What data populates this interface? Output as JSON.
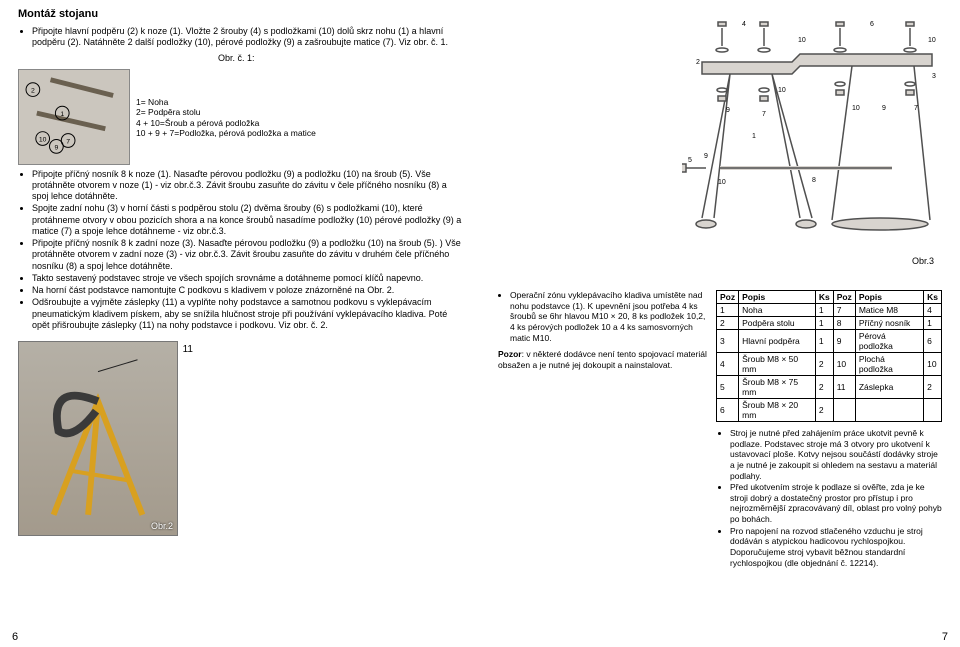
{
  "title": "Montáž stojanu",
  "intro_bullets": [
    "Připojte hlavní podpěru (2) k noze (1). Vložte 2 šrouby (4) s podložkami (10) dolů skrz nohu (1) a hlavní podpěru (2). Natáhněte 2 další podložky (10), pérové podložky (9) a zašroubujte matice (7). Viz obr. č. 1."
  ],
  "obr1_label": "Obr. č. 1:",
  "legend": {
    "l1": "1= Noha",
    "l2": "2= Podpěra stolu",
    "l3": "4 + 10=Šroub a pérová podložka",
    "l4": "10 + 9 + 7=Podložka, pérová podložka  a matice"
  },
  "main_bullets": [
    "Připojte příčný nosník 8 k noze (1). Nasaďte pérovou podložku (9) a podložku (10) na šroub (5). Vše protáhněte otvorem v noze (1) - viz obr.č.3. Závit šroubu zasuňte do závitu v čele příčného nosníku (8) a spoj lehce dotáhněte.",
    "Spojte zadní nohu (3) v horní části s podpěrou stolu (2) dvěma šrouby (6) s podložkami (10), které protáhneme otvory v obou pozicích shora a na konce šroubů nasadíme podložky (10) pérové podložky (9) a matice (7) a spoje lehce dotáhneme - viz obr.č.3.",
    "Připojte příčný nosník 8 k zadní noze (3). Nasaďte pérovou podložku (9) a podložku (10) na šroub (5). ) Vše protáhněte otvorem v zadní noze (3) - viz obr.č.3. Závit šroubu zasuňte do závitu v druhém čele příčného nosníku (8) a spoj lehce dotáhněte.",
    "Takto sestavený podstavec stroje ve všech spojích srovnáme a dotáhneme pomocí klíčů napevno.",
    "Na horní část podstavce namontujte C podkovu s kladivem v poloze znázorněné na Obr. 2.",
    "Odšroubujte a vyjměte záslepky (11) a vyplňte nohy podstavce a samotnou podkovu s vyklepávacím pneumatickým kladivem pískem, aby se snížila hlučnost stroje při používání vyklepávacího kladiva. Poté opět přišroubujte záslepky (11) na nohy podstavce i podkovu. Viz obr. č. 2."
  ],
  "photo_num": "11",
  "photo_label": "Obr.2",
  "right_text": {
    "p1": "Operační zónu vyklepávacího kladiva umístěte nad nohu podstavce (1). K upevnění jsou potřeba 4 ks šroubů se 6hr hlavou M10 × 20, 8 ks podložek 10,2, 4 ks pérových podložek 10 a 4 ks samosvorných matic M10.",
    "p2_bold": "Pozor",
    "p2_rest": ": v některé dodávce není tento spojovací materiál obsažen a je nutné jej dokoupit a nainstalovat."
  },
  "table": {
    "headers": [
      "Poz",
      "Popis",
      "Ks",
      "Poz",
      "Popis",
      "Ks"
    ],
    "rows": [
      [
        "1",
        "Noha",
        "1",
        "7",
        "Matice M8",
        "4"
      ],
      [
        "2",
        "Podpěra stolu",
        "1",
        "8",
        "Příčný nosník",
        "1"
      ],
      [
        "3",
        "Hlavní podpěra",
        "1",
        "9",
        "Pérová podložka",
        "6"
      ],
      [
        "4",
        "Šroub M8 × 50 mm",
        "2",
        "10",
        "Plochá podložka",
        "10"
      ],
      [
        "5",
        "Šroub M8 × 75 mm",
        "2",
        "11",
        "Záslepka",
        "2"
      ],
      [
        "6",
        "Šroub M8 × 20 mm",
        "2",
        "",
        "",
        ""
      ]
    ]
  },
  "right_bullets": [
    "Stroj je nutné před zahájením práce ukotvit pevně k podlaze. Podstavec stroje má 3 otvory pro ukotvení k ustavovací ploše. Kotvy nejsou součástí dodávky stroje a je nutné je zakoupit si ohledem na sestavu a materiál podlahy.",
    "Před ukotvením stroje k podlaze si ověřte, zda je ke stroji dobrý a dostatečný prostor pro přístup i pro nejrozměrnější zpracovávaný díl, oblast pro volný pohyb po bohách.",
    "Pro napojení na rozvod stlačeného vzduchu je stroj dodáván s atypickou hadicovou rychlospojkou. Doporučujeme stroj vybavit běžnou standardní rychlospojkou (dle objednání č. 12214)."
  ],
  "obr3": "Obr.3",
  "pg_left": "6",
  "pg_right": "7",
  "diagram": {
    "line_color": "#505050",
    "fill": "#d8d4cf",
    "label_font": 8,
    "nums": [
      "1",
      "2",
      "3",
      "4",
      "5",
      "6",
      "7",
      "8",
      "9",
      "10"
    ]
  }
}
